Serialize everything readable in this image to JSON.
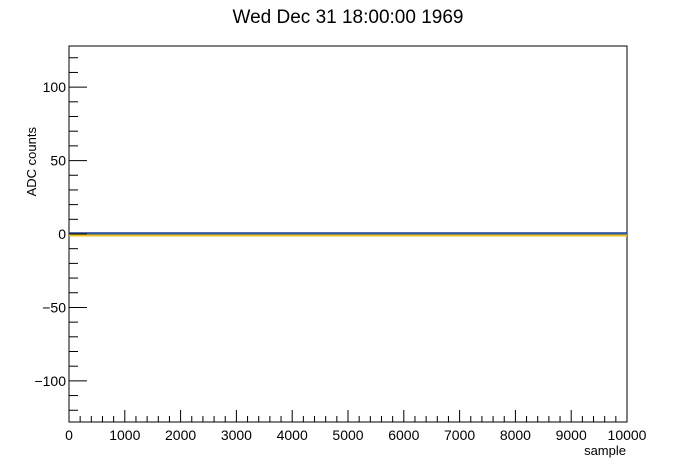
{
  "chart_data": {
    "type": "line",
    "title": "Wed Dec 31 18:00:00 1969",
    "xlabel": "sample",
    "ylabel": "ADC counts",
    "xlim": [
      0,
      10000
    ],
    "ylim": [
      -128,
      128
    ],
    "x_ticks": [
      0,
      1000,
      2000,
      3000,
      4000,
      5000,
      6000,
      7000,
      8000,
      9000,
      10000
    ],
    "x_tick_labels": [
      "0",
      "1000",
      "2000",
      "3000",
      "4000",
      "5000",
      "6000",
      "7000",
      "8000",
      "9000",
      "10000"
    ],
    "y_ticks": [
      -100,
      -50,
      0,
      50,
      100
    ],
    "y_tick_labels": [
      "−100",
      "−50",
      "0",
      "50",
      "100"
    ],
    "grid": false,
    "series": [
      {
        "color": "#1f3f8f",
        "x": [
          0,
          10000
        ],
        "y": [
          0.5,
          0.5
        ]
      },
      {
        "color": "#2a5aa8",
        "x": [
          0,
          10000
        ],
        "y": [
          0,
          0
        ]
      },
      {
        "color": "#e8c020",
        "x": [
          0,
          10000
        ],
        "y": [
          -1,
          -1
        ]
      }
    ]
  }
}
